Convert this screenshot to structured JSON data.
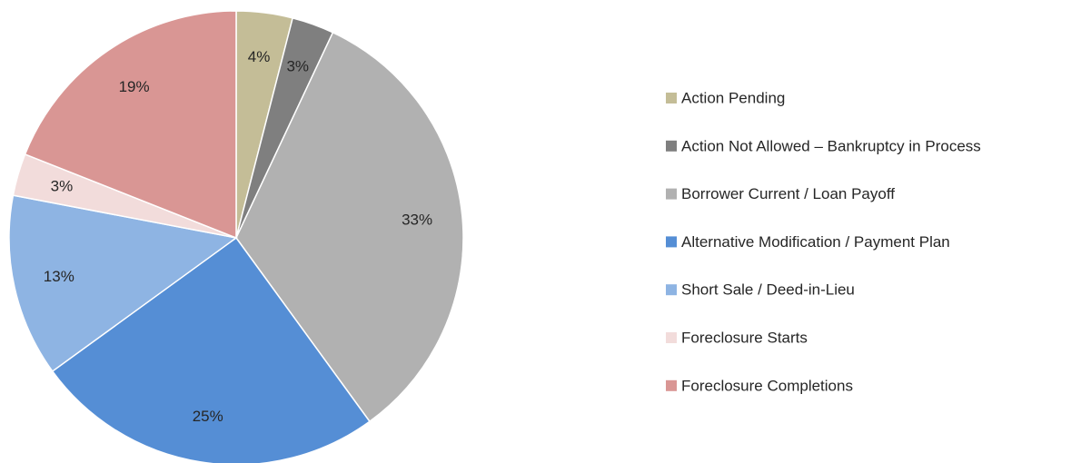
{
  "chart_data": {
    "type": "pie",
    "categories": [
      "Action Pending",
      "Action Not Allowed – Bankruptcy in Process",
      "Borrower Current / Loan Payoff",
      "Alternative Modification / Payment Plan",
      "Short Sale / Deed-in-Lieu",
      "Foreclosure Starts",
      "Foreclosure Completions"
    ],
    "values": [
      4,
      3,
      33,
      25,
      13,
      3,
      19
    ],
    "value_labels": [
      "4%",
      "3%",
      "33%",
      "25%",
      "13%",
      "3%",
      "19%"
    ],
    "colors": [
      "#c4bd97",
      "#7f7f7f",
      "#b1b1b1",
      "#558ed5",
      "#8eb4e3",
      "#f2dcdb",
      "#d99694"
    ],
    "legend": "right"
  }
}
